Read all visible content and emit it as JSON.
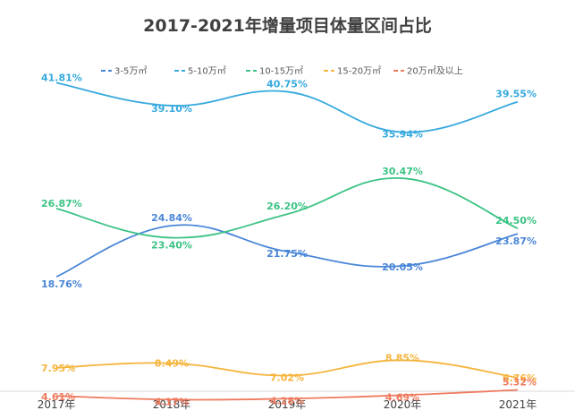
{
  "chart_data": {
    "type": "line",
    "title": "2017-2021年增量项目体量区间占比",
    "xlabel": "",
    "ylabel": "",
    "categories": [
      "2017年",
      "2018年",
      "2019年",
      "2020年",
      "2021年"
    ],
    "legend_position": "top",
    "grid": false,
    "smooth": true,
    "series": [
      {
        "name": "3-5万㎡",
        "color": "#4a86d8",
        "values": [
          18.76,
          24.84,
          21.75,
          20.05,
          23.87
        ],
        "labels": [
          "18.76%",
          "24.84%",
          "21.75%",
          "20.05%",
          "23.87%"
        ]
      },
      {
        "name": "5-10万㎡",
        "color": "#36a9de",
        "values": [
          41.81,
          39.1,
          40.75,
          35.94,
          39.55
        ],
        "labels": [
          "41.81%",
          "39.10%",
          "40.75%",
          "35.94%",
          "39.55%"
        ]
      },
      {
        "name": "10-15万㎡",
        "color": "#3cc384",
        "values": [
          26.87,
          23.4,
          26.2,
          30.47,
          24.5
        ],
        "labels": [
          "26.87%",
          "23.40%",
          "26.20%",
          "30.47%",
          "24.50%"
        ]
      },
      {
        "name": "15-20万㎡",
        "color": "#f5b43c",
        "values": [
          7.95,
          8.49,
          7.02,
          8.85,
          6.76
        ],
        "labels": [
          "7.95%",
          "8.49%",
          "7.02%",
          "8.85%",
          "6.76%"
        ]
      },
      {
        "name": "20万㎡及以上",
        "color": "#ee7b5f",
        "values": [
          4.61,
          4.17,
          4.28,
          4.69,
          5.32
        ],
        "labels": [
          "4.61%",
          "4.17%",
          "4.28%",
          "4.69%",
          "5.32%"
        ]
      }
    ]
  }
}
